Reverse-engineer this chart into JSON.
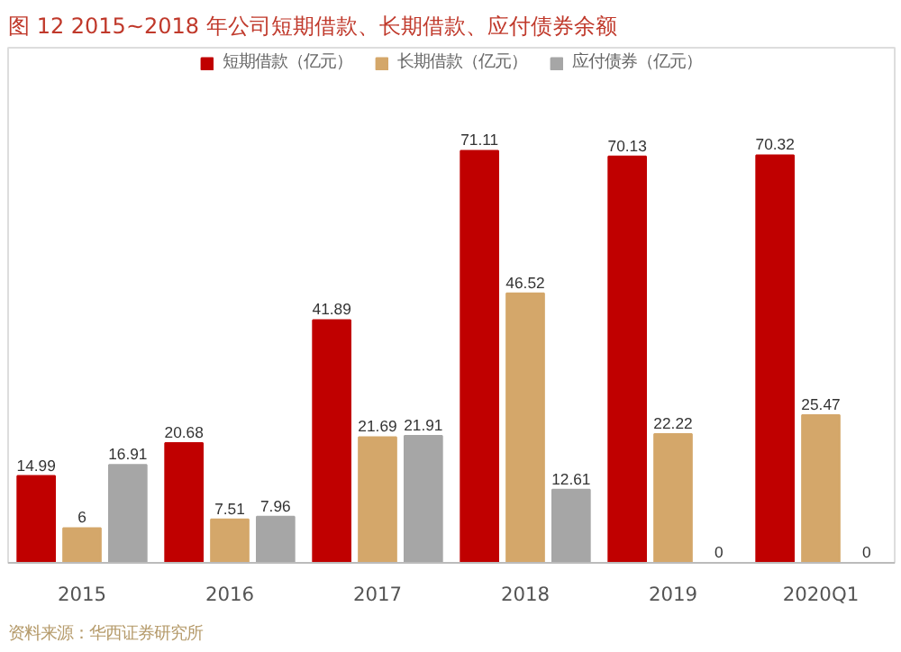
{
  "chart_data": {
    "type": "bar",
    "title": "图 12  2015~2018 年公司短期借款、长期借款、应付债券余额",
    "categories": [
      "2015",
      "2016",
      "2017",
      "2018",
      "2019",
      "2020Q1"
    ],
    "series": [
      {
        "name": "短期借款（亿元）",
        "color": "#c00000",
        "values": [
          14.99,
          20.68,
          41.89,
          71.11,
          70.13,
          70.32
        ]
      },
      {
        "name": "长期借款（亿元）",
        "color": "#d4a76a",
        "values": [
          6,
          7.51,
          21.69,
          46.52,
          22.22,
          25.47
        ]
      },
      {
        "name": "应付债券（亿元）",
        "color": "#a6a6a6",
        "values": [
          16.91,
          7.96,
          21.91,
          12.61,
          0,
          0
        ]
      }
    ],
    "data_labels": true,
    "legend": "top",
    "grid": false,
    "annotations": [
      "资料来源：华西证券研究所"
    ]
  }
}
